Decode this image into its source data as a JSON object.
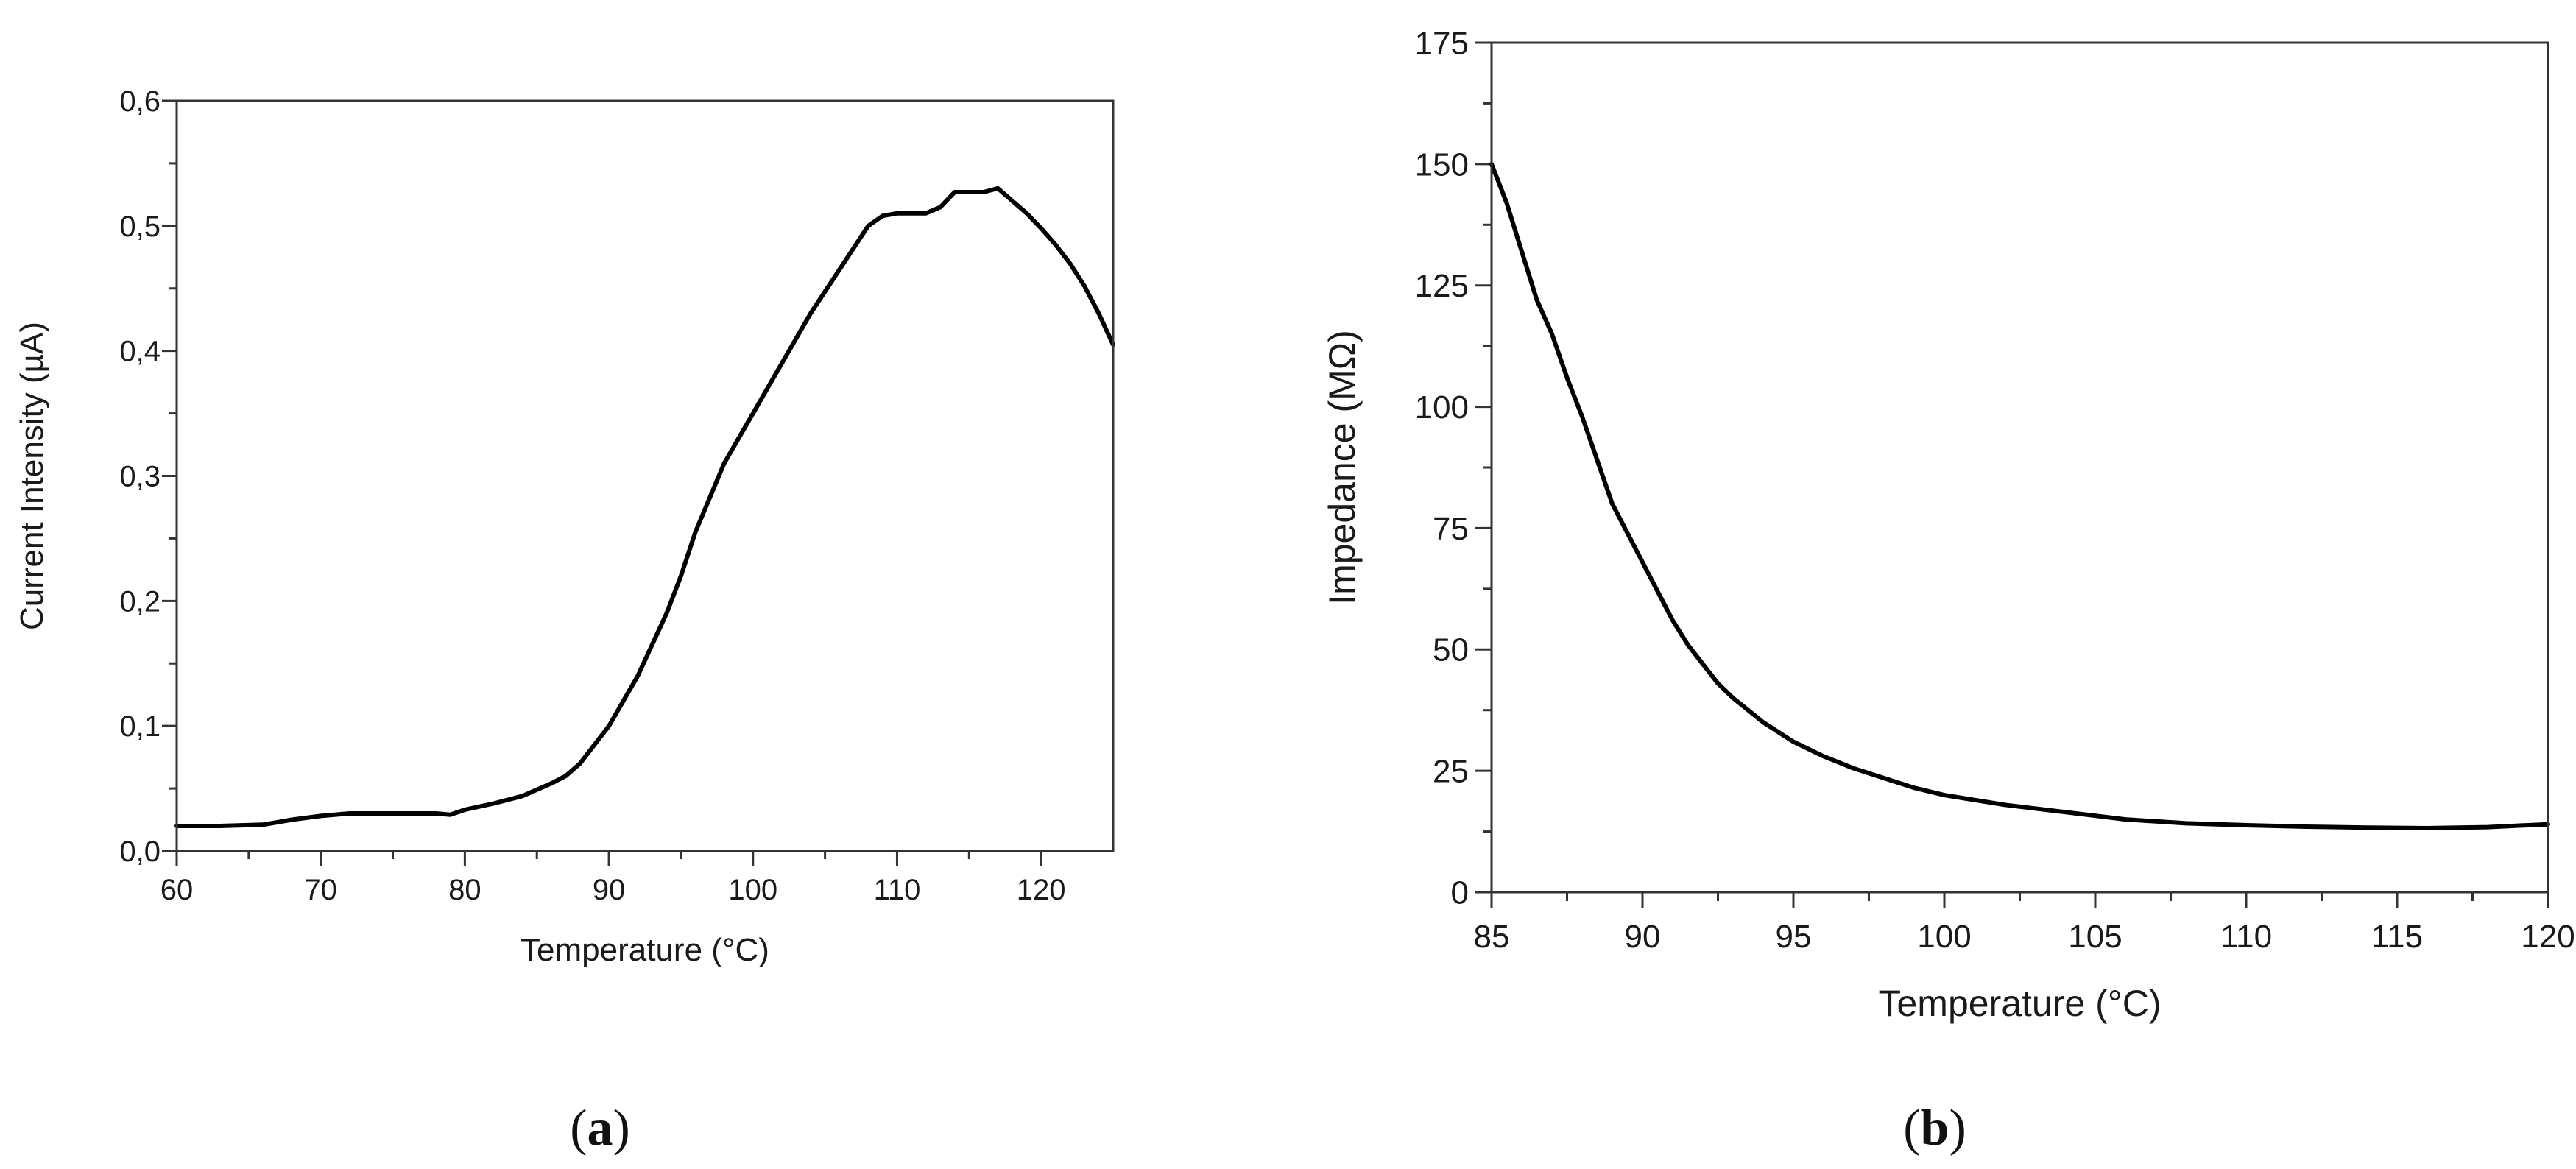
{
  "chart_data": [
    {
      "type": "line",
      "panel_label": "a",
      "title": "",
      "xlabel": "Temperature (°C)",
      "ylabel": "Current Intensity (µA)",
      "xlim": [
        60,
        125
      ],
      "ylim": [
        0.0,
        0.6
      ],
      "xticks": [
        60,
        70,
        80,
        90,
        100,
        110,
        120
      ],
      "xtick_labels": [
        "60",
        "70",
        "80",
        "90",
        "100",
        "110",
        "120"
      ],
      "yticks": [
        0.0,
        0.1,
        0.2,
        0.3,
        0.4,
        0.5,
        0.6
      ],
      "ytick_labels": [
        "0,0",
        "0,1",
        "0,2",
        "0,3",
        "0,4",
        "0,5",
        "0,6"
      ],
      "grid": false,
      "series": [
        {
          "name": "Current Intensity",
          "x": [
            60,
            63,
            66,
            68,
            70,
            72,
            74,
            76,
            78,
            79,
            80,
            82,
            84,
            86,
            87,
            88,
            89,
            90,
            92,
            94,
            95,
            96,
            98,
            100,
            102,
            104,
            106,
            108,
            109,
            110,
            111,
            112,
            113,
            114,
            115,
            116,
            117,
            118,
            119,
            120,
            121,
            122,
            123,
            124,
            125
          ],
          "y": [
            0.02,
            0.02,
            0.021,
            0.025,
            0.028,
            0.03,
            0.03,
            0.03,
            0.03,
            0.029,
            0.033,
            0.038,
            0.044,
            0.054,
            0.06,
            0.07,
            0.085,
            0.1,
            0.14,
            0.19,
            0.22,
            0.255,
            0.31,
            0.35,
            0.39,
            0.43,
            0.465,
            0.5,
            0.508,
            0.51,
            0.51,
            0.51,
            0.515,
            0.527,
            0.527,
            0.527,
            0.53,
            0.52,
            0.51,
            0.498,
            0.485,
            0.47,
            0.452,
            0.43,
            0.405
          ]
        }
      ]
    },
    {
      "type": "line",
      "panel_label": "b",
      "title": "",
      "xlabel": "Temperature (°C)",
      "ylabel": "Impedance (MΩ)",
      "xlim": [
        85,
        120
      ],
      "ylim": [
        0,
        175
      ],
      "xticks": [
        85,
        90,
        95,
        100,
        105,
        110,
        115,
        120
      ],
      "xtick_labels": [
        "85",
        "90",
        "95",
        "100",
        "105",
        "110",
        "115",
        "120"
      ],
      "yticks": [
        0,
        25,
        50,
        75,
        100,
        125,
        150,
        175
      ],
      "ytick_labels": [
        "0",
        "25",
        "50",
        "75",
        "100",
        "125",
        "150",
        "175"
      ],
      "grid": false,
      "series": [
        {
          "name": "Impedance",
          "x": [
            85,
            85.5,
            86,
            86.5,
            87,
            87.5,
            88,
            88.5,
            89,
            89.5,
            90,
            90.5,
            91,
            91.5,
            92,
            92.5,
            93,
            94,
            95,
            96,
            97,
            98,
            99,
            100,
            102,
            104,
            106,
            108,
            110,
            112,
            114,
            116,
            118,
            120
          ],
          "y": [
            150,
            142,
            132,
            122,
            115,
            106,
            98,
            89,
            80,
            74,
            68,
            62,
            56,
            51,
            47,
            43,
            40,
            35,
            31,
            28,
            25.5,
            23.5,
            21.5,
            20,
            18,
            16.5,
            15,
            14.2,
            13.8,
            13.5,
            13.3,
            13.2,
            13.4,
            14
          ]
        }
      ]
    }
  ],
  "labels": {
    "a": {
      "open": "(",
      "letter": "a",
      "close": ")"
    },
    "b": {
      "open": "(",
      "letter": "b",
      "close": ")"
    }
  }
}
